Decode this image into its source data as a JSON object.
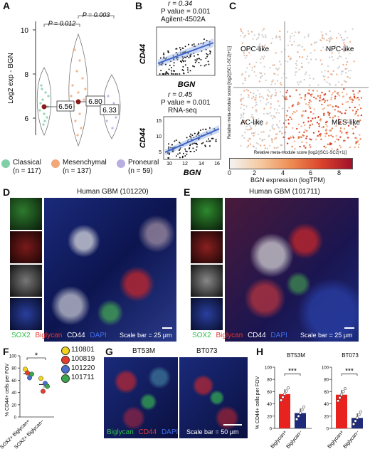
{
  "panels": {
    "A": {
      "label": "A",
      "ylabel": "Log2 exp - BGN",
      "yticks": [
        "10",
        "8",
        "6"
      ],
      "pvalues": [
        "P = 0.012",
        "P = 0.003"
      ],
      "medians": [
        "6.56",
        "6.80",
        "6.33"
      ],
      "legend": [
        {
          "name": "Classical",
          "n": "(n = 117)",
          "color": "#7fcfa9"
        },
        {
          "name": "Mesenchymal",
          "n": "(n = 137)",
          "color": "#f2a77a"
        },
        {
          "name": "Proneural",
          "n": "(n = 59)",
          "color": "#b9aee0"
        }
      ]
    },
    "B": {
      "label": "B",
      "top": {
        "r": "r = 0.34",
        "p": "P value = 0.001",
        "source": "Agilent-4502A",
        "ylabel": "CD44",
        "xlabel": "BGN"
      },
      "bottom": {
        "r": "r = 0.45",
        "p": "P value = 0.001",
        "source": "RNA-seq",
        "ylabel": "CD44",
        "xlabel": "BGN",
        "yticks": [
          "15",
          "10",
          "5"
        ],
        "xticks": [
          "10",
          "12",
          "14",
          "16"
        ]
      }
    },
    "C": {
      "label": "C",
      "quadrants": [
        "OPC-like",
        "NPC-like",
        "AC-like",
        "MES-like"
      ],
      "ylabel": "Relative meta-module score [log2(|SC1-SC2|+1)]",
      "xlabel": "Relative meta-module score [log2(|SC1-SC2|+1)]",
      "colorbar_ticks": [
        "0",
        "2",
        "4",
        "6",
        "8"
      ],
      "colorbar_label": "BGN expression (logTPM)"
    },
    "D": {
      "label": "D",
      "title": "Human GBM (101220)",
      "stains": [
        "SOX2",
        "Biglycan",
        "CD44",
        "DAPI"
      ],
      "scalebar": "Scale bar = 25 μm"
    },
    "E": {
      "label": "E",
      "title": "Human GBM (101711)",
      "stains": [
        "SOX2",
        "Biglycan",
        "CD44",
        "DAPI"
      ],
      "scalebar": "Scale bar = 25 μm"
    },
    "F": {
      "label": "F",
      "ylabel": "% CD44+ cells per FOV",
      "yticks": [
        "100",
        "80",
        "60",
        "40",
        "20",
        "0"
      ],
      "xlabels": [
        "SOX2+ Biglycan+",
        "SOX2+ Biglycan−"
      ],
      "significance": "*",
      "legend": [
        {
          "name": "110801",
          "color": "#f2d21b"
        },
        {
          "name": "100819",
          "color": "#e63c2e"
        },
        {
          "name": "101220",
          "color": "#4a6fd1"
        },
        {
          "name": "101711",
          "color": "#3aa84a"
        }
      ]
    },
    "G": {
      "label": "G",
      "titles": [
        "BT53M",
        "BT073"
      ],
      "stains": [
        "Biglycan",
        "CD44",
        "DAPI"
      ],
      "scalebar": "Scale bar = 50 μm"
    },
    "H": {
      "label": "H",
      "ylabel": "% CD44+ cells per FOV",
      "yticks": [
        "100",
        "80",
        "60",
        "40",
        "20",
        "0"
      ],
      "charts": [
        {
          "title": "BT53M",
          "categories": [
            "Biglycan+",
            "Biglycan−"
          ],
          "significance": "***"
        },
        {
          "title": "BT073",
          "categories": [
            "Biglycan+",
            "Biglycan−"
          ],
          "significance": "***"
        }
      ]
    }
  },
  "colors": {
    "red_bar": "#e8231f",
    "blue_bar": "#1f2a7a",
    "green": "#2fbf4a",
    "red": "#e53935",
    "blue": "#3f6ee8"
  },
  "chart_data": [
    {
      "type": "bar",
      "title": "BT53M",
      "ylabel": "% CD44+ cells per FOV",
      "categories": [
        "Biglycan+",
        "Biglycan−"
      ],
      "values": [
        56,
        25
      ],
      "ylim": [
        0,
        100
      ]
    },
    {
      "type": "bar",
      "title": "BT073",
      "ylabel": "% CD44+ cells per FOV",
      "categories": [
        "Biglycan+",
        "Biglycan−"
      ],
      "values": [
        55,
        17
      ],
      "ylim": [
        0,
        100
      ]
    },
    {
      "type": "scatter",
      "ylabel": "% CD44+ cells per FOV",
      "categories": [
        "SOX2+ Biglycan+",
        "SOX2+ Biglycan−"
      ],
      "series": [
        {
          "name": "110801",
          "values": [
            78,
            63
          ]
        },
        {
          "name": "100819",
          "values": [
            72,
            42
          ]
        },
        {
          "name": "101220",
          "values": [
            64,
            55
          ]
        },
        {
          "name": "101711",
          "values": [
            70,
            50
          ]
        }
      ],
      "means": [
        71,
        53
      ],
      "ylim": [
        0,
        100
      ]
    }
  ]
}
